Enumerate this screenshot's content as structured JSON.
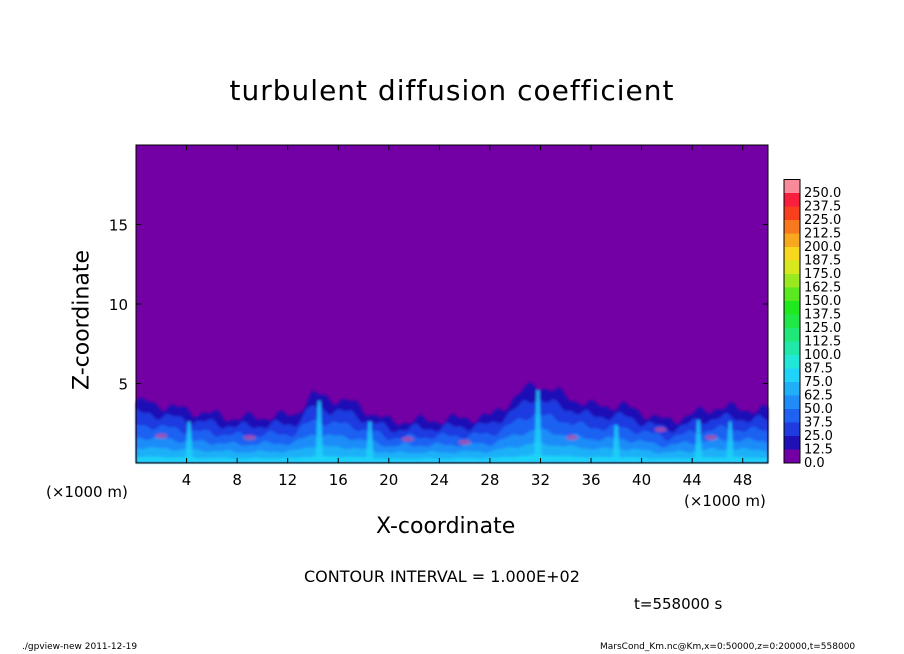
{
  "chart_data": {
    "type": "heatmap",
    "title": "turbulent diffusion coefficient",
    "xlabel": "X-coordinate",
    "ylabel": "Z-coordinate",
    "x_unit": "(×1000 m)",
    "y_unit": "(×1000 m)",
    "xlim": [
      0,
      50
    ],
    "ylim": [
      0,
      20
    ],
    "x_ticks": [
      4,
      8,
      12,
      16,
      20,
      24,
      28,
      32,
      36,
      40,
      44,
      48
    ],
    "y_ticks": [
      5,
      10,
      15
    ],
    "colorbar": {
      "levels": [
        0.0,
        12.5,
        25.0,
        37.5,
        50.0,
        62.5,
        75.0,
        87.5,
        100.0,
        112.5,
        125.0,
        137.5,
        150.0,
        162.5,
        175.0,
        187.5,
        200.0,
        212.5,
        225.0,
        237.5,
        250.0
      ],
      "colors": [
        "#7300a5",
        "#1f10b6",
        "#1f3be0",
        "#1f62f2",
        "#1f8cf8",
        "#1fb0f8",
        "#1fd4f8",
        "#1fe8d8",
        "#1fe8a8",
        "#1fe878",
        "#1fe848",
        "#1fe81f",
        "#5ae81f",
        "#9ae81f",
        "#d8e81f",
        "#f8d81f",
        "#f8a81f",
        "#f8781f",
        "#f8401f",
        "#f81f3c",
        "#f88a9a"
      ]
    },
    "background_value": 0.0,
    "plume_heights_km": [
      {
        "x": 1,
        "z": 3.8
      },
      {
        "x": 4,
        "z": 3.3
      },
      {
        "x": 8,
        "z": 2.8
      },
      {
        "x": 12.5,
        "z": 3.0
      },
      {
        "x": 14,
        "z": 4.3
      },
      {
        "x": 17,
        "z": 3.8
      },
      {
        "x": 20,
        "z": 2.6
      },
      {
        "x": 24,
        "z": 2.7
      },
      {
        "x": 28,
        "z": 2.9
      },
      {
        "x": 31.5,
        "z": 5.0
      },
      {
        "x": 36,
        "z": 3.6
      },
      {
        "x": 38.5,
        "z": 3.6
      },
      {
        "x": 42,
        "z": 2.6
      },
      {
        "x": 46,
        "z": 3.5
      },
      {
        "x": 50,
        "z": 3.3
      }
    ]
  },
  "labels": {
    "contour_interval": "CONTOUR INTERVAL = 1.000E+02",
    "time": "t=558000 s",
    "footer_left": "./gpview-new   2011-12-19",
    "footer_right": "MarsCond_Km.nc@Km,x=0:50000,z=0:20000,t=558000"
  }
}
